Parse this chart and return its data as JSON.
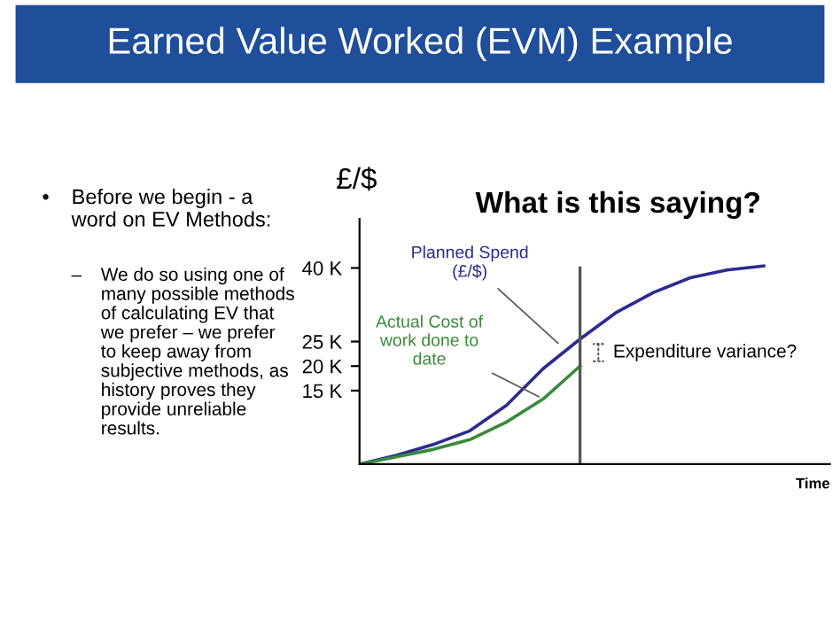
{
  "chart_data": {
    "type": "line",
    "title": "Earned Value Worked (EVM) Example",
    "subtitle": "What is this saying?",
    "ylabel": "£/$",
    "xlabel": "Time",
    "categories": [
      null,
      null,
      null,
      null,
      null,
      null,
      null,
      null,
      null,
      null,
      null,
      null
    ],
    "series": [
      {
        "name": "Planned Spend (£/$)",
        "color": "#2b2b8f",
        "values": [
          0,
          1.8,
          4,
          6.8,
          12,
          19.5,
          25.5,
          31,
          35,
          38,
          39.6,
          40.4
        ]
      },
      {
        "name": "Actual Cost of work done to date",
        "color": "#3a8a3a",
        "values": [
          0,
          1.5,
          3,
          5,
          8.6,
          13.3,
          20,
          null,
          null,
          null,
          null,
          null
        ]
      }
    ],
    "ylim": [
      0,
      50
    ],
    "yticks": [
      {
        "value": 15,
        "label": "15 K"
      },
      {
        "value": 20,
        "label": "20 K"
      },
      {
        "value": 25,
        "label": "25 K"
      },
      {
        "value": 40,
        "label": "40 K"
      }
    ],
    "annotations": [
      "•",
      "Before we begin - a word on EV Methods:",
      "–",
      "We do so using one of many possible methods of calculating EV that we prefer – we prefer to keep away from subjective methods, as history proves they provide unreliable results.",
      "Expenditure variance?"
    ],
    "grid": false,
    "legend": false,
    "marker": "none",
    "line_style": "solid"
  }
}
